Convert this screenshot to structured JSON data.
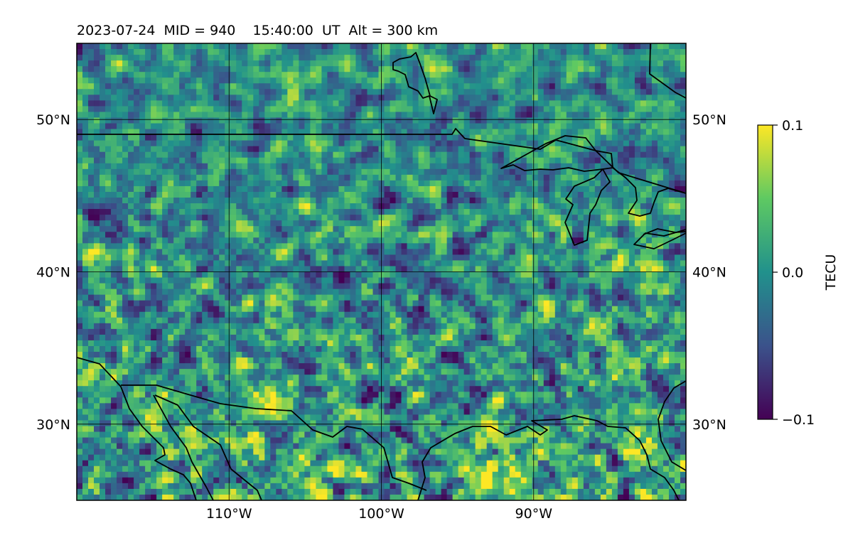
{
  "title": "2023-07-24  MID = 940    15:40:00  UT  Alt = 300 km",
  "map": {
    "lon_range": [
      -120,
      -80
    ],
    "lat_range": [
      25,
      55
    ],
    "grid": true,
    "lon_ticks": [
      {
        "value": -110,
        "label": "110°W"
      },
      {
        "value": -100,
        "label": "100°W"
      },
      {
        "value": -90,
        "label": "90°W"
      }
    ],
    "lat_ticks": [
      {
        "value": 50,
        "label": "50°N"
      },
      {
        "value": 40,
        "label": "40°N"
      },
      {
        "value": 30,
        "label": "30°N"
      }
    ],
    "features": [
      "coastlines",
      "country-borders",
      "great-lakes"
    ],
    "field": "pixelated TEC perturbation, mostly near 0 with positive (yellow) patches in the south and negative (purple) spots scattered"
  },
  "colorbar": {
    "label": "TECU",
    "colormap": "viridis",
    "colors": [
      "#440154",
      "#3b528b",
      "#21918c",
      "#5ec962",
      "#fde725"
    ],
    "min": -0.1,
    "max": 0.1,
    "ticks": [
      {
        "value": 0.1,
        "label": "0.1"
      },
      {
        "value": 0.0,
        "label": "0.0"
      },
      {
        "value": -0.1,
        "label": "−0.1"
      }
    ]
  }
}
